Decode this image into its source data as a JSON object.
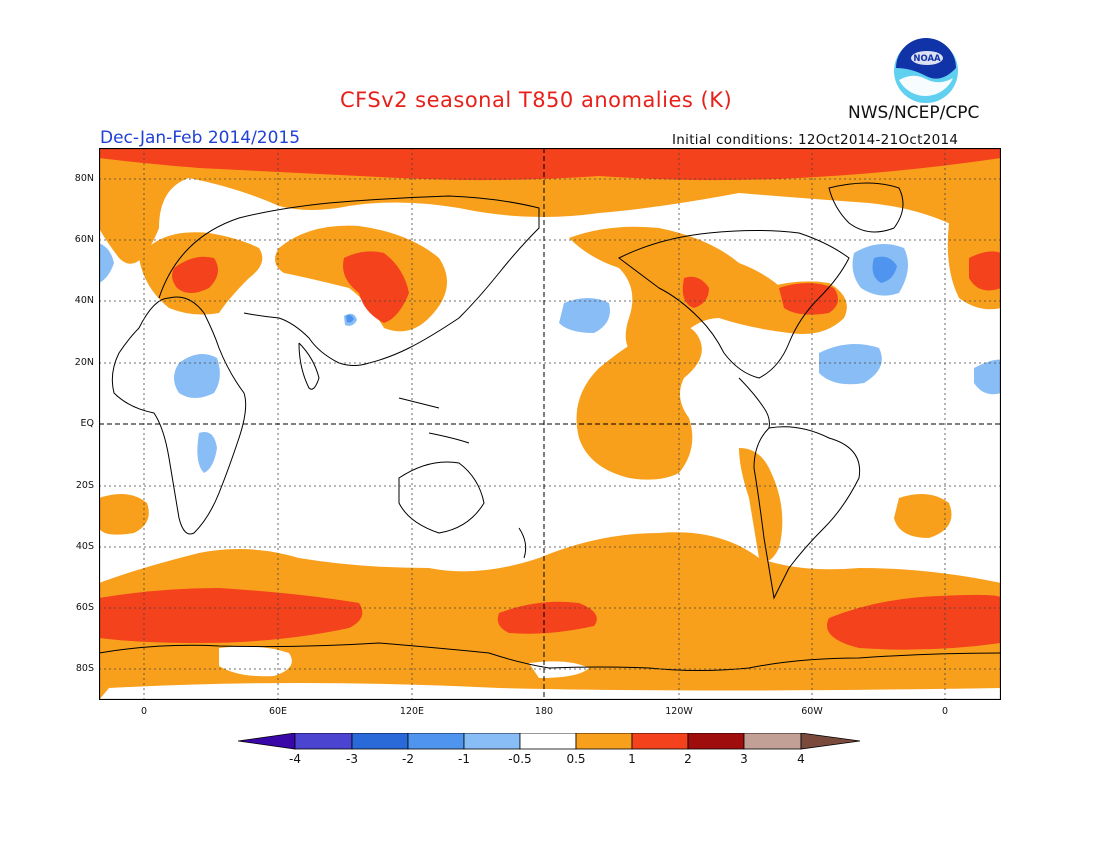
{
  "header": {
    "title": "CFSv2 seasonal T850 anomalies (K)",
    "season": "Dec-Jan-Feb 2014/2015",
    "initial_conditions": "Initial conditions: 12Oct2014-21Oct2014",
    "agency": "NWS/NCEP/CPC",
    "logo_text": "NOAA"
  },
  "map": {
    "projection": "equirectangular",
    "lat_labels": [
      "80N",
      "60N",
      "40N",
      "20N",
      "EQ",
      "20S",
      "40S",
      "60S",
      "80S"
    ],
    "lon_labels": [
      "0",
      "60E",
      "120E",
      "180",
      "120W",
      "60W",
      "0"
    ]
  },
  "colorbar": {
    "ticks": [
      "-4",
      "-3",
      "-2",
      "-1",
      "-0.5",
      "0.5",
      "1",
      "2",
      "3",
      "4"
    ],
    "colors": [
      "#3a08a8",
      "#4a44d0",
      "#2a6ad8",
      "#4f95ef",
      "#89bdf6",
      "#ffffff",
      "#f8a01c",
      "#f4421c",
      "#a00d0d",
      "#c2a096",
      "#7a4b3c"
    ]
  },
  "colors": {
    "title": "#e8201a",
    "season": "#1f3fd6",
    "warm1": "#f8a01c",
    "warm2": "#f4421c",
    "cool1": "#89bdf6",
    "cool2": "#4f95ef"
  }
}
